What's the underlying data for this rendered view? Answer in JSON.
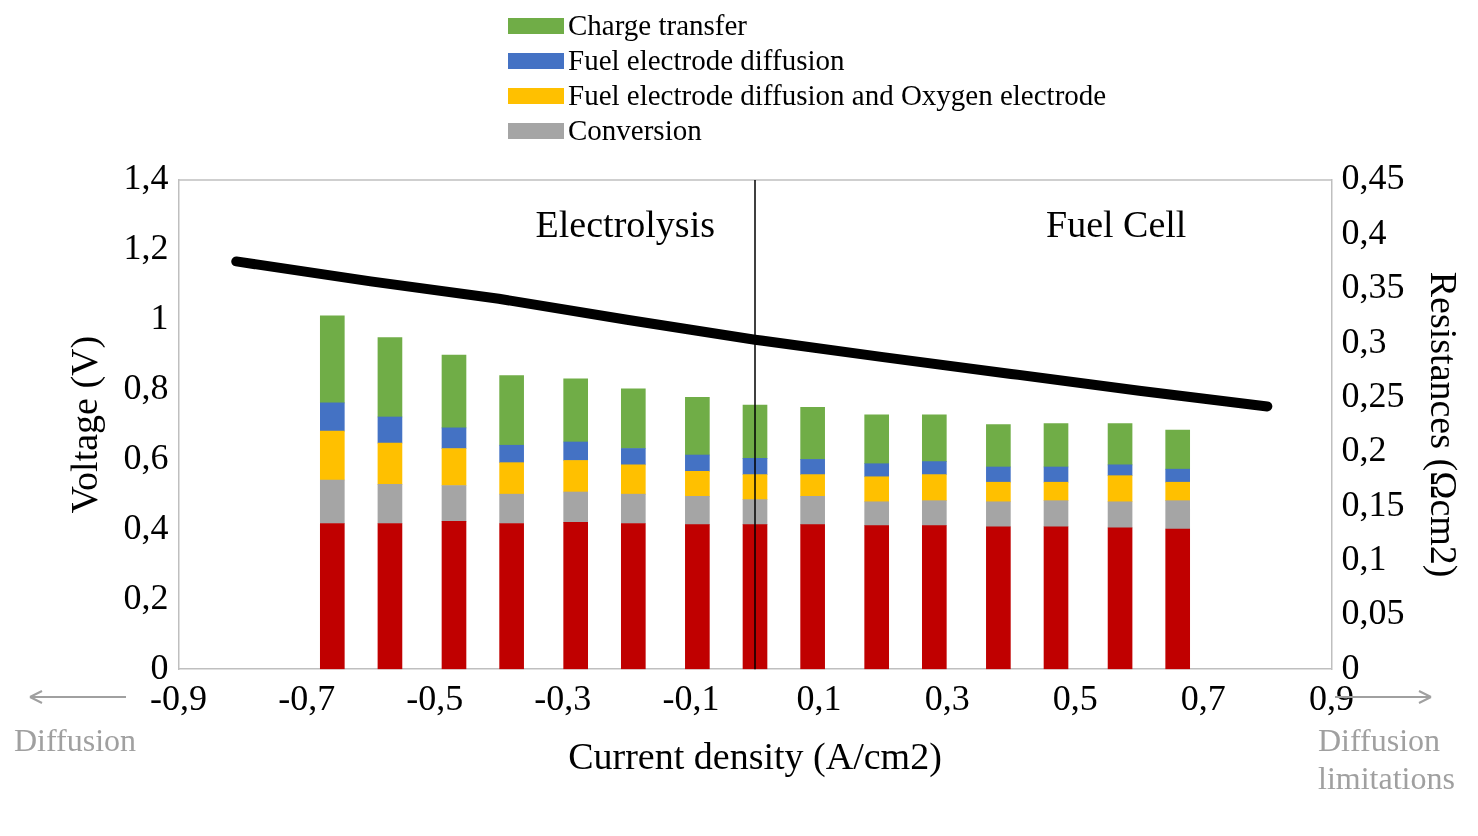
{
  "chart_data": {
    "type": "bar",
    "stacked": true,
    "xlabel": "Current density (A/cm2)",
    "ylabel": "Voltage (V)",
    "y2label": "Resistances (Ωcm2)",
    "x": [
      -0.66,
      -0.57,
      -0.47,
      -0.38,
      -0.28,
      -0.19,
      -0.09,
      0,
      0.09,
      0.19,
      0.28,
      0.38,
      0.47,
      0.57,
      0.66
    ],
    "xlim": [
      -0.9,
      0.9
    ],
    "xticks": [
      {
        "value": -0.9,
        "label": "-0,9"
      },
      {
        "value": -0.7,
        "label": "-0,7"
      },
      {
        "value": -0.5,
        "label": "-0,5"
      },
      {
        "value": -0.3,
        "label": "-0,3"
      },
      {
        "value": -0.1,
        "label": "-0,1"
      },
      {
        "value": 0.1,
        "label": "0,1"
      },
      {
        "value": 0.3,
        "label": "0,3"
      },
      {
        "value": 0.5,
        "label": "0,5"
      },
      {
        "value": 0.7,
        "label": "0,7"
      },
      {
        "value": 0.9,
        "label": "0,9"
      }
    ],
    "ylim": [
      0,
      1.4
    ],
    "yticks": [
      0,
      {
        "value": 0.2,
        "label": "0,2"
      },
      {
        "value": 0.4,
        "label": "0,4"
      },
      {
        "value": 0.6,
        "label": "0,6"
      },
      {
        "value": 0.8,
        "label": "0,8"
      },
      1,
      {
        "value": 1.2,
        "label": "1,2"
      },
      {
        "value": 1.4,
        "label": "1,4"
      }
    ],
    "y2lim": [
      0,
      0.45
    ],
    "y2ticks": [
      0,
      {
        "value": 0.05,
        "label": "0,05"
      },
      {
        "value": 0.1,
        "label": "0,1"
      },
      {
        "value": 0.15,
        "label": "0,15"
      },
      {
        "value": 0.2,
        "label": "0,2"
      },
      {
        "value": 0.25,
        "label": "0,25"
      },
      {
        "value": 0.3,
        "label": "0,3"
      },
      {
        "value": 0.35,
        "label": "0,35"
      },
      {
        "value": 0.4,
        "label": "0,4"
      },
      {
        "value": 0.45,
        "label": "0,45"
      }
    ],
    "grid": false,
    "legend": "top",
    "marker": "none",
    "line_style": "solid",
    "series": [
      {
        "type": "line",
        "color": "#000000",
        "x": [
          -0.81,
          -0.6,
          -0.4,
          -0.2,
          0,
          0.2,
          0.4,
          0.6,
          0.8
        ],
        "values": [
          1.167,
          1.11,
          1.06,
          1.0,
          0.943,
          0.893,
          0.845,
          0.797,
          0.752
        ]
      },
      {
        "axis": "y2",
        "color": "#c00000",
        "values": [
          0.134,
          0.134,
          0.136,
          0.134,
          0.135,
          0.134,
          0.133,
          0.133,
          0.133,
          0.132,
          0.132,
          0.131,
          0.131,
          0.13,
          0.129
        ]
      },
      {
        "axis": "y2",
        "name": "Conversion",
        "color": "#a5a5a5",
        "values": [
          0.04,
          0.036,
          0.033,
          0.027,
          0.028,
          0.027,
          0.026,
          0.023,
          0.026,
          0.022,
          0.023,
          0.023,
          0.024,
          0.024,
          0.026
        ]
      },
      {
        "axis": "y2",
        "name": "Fuel electrode diffusion and Oxygen electrode",
        "color": "#ffc000",
        "values": [
          0.045,
          0.038,
          0.034,
          0.029,
          0.029,
          0.027,
          0.023,
          0.023,
          0.02,
          0.023,
          0.024,
          0.018,
          0.017,
          0.024,
          0.017
        ]
      },
      {
        "axis": "y2",
        "name": "Fuel electrode diffusion",
        "color": "#4472c4",
        "values": [
          0.026,
          0.024,
          0.019,
          0.016,
          0.017,
          0.015,
          0.015,
          0.015,
          0.014,
          0.012,
          0.012,
          0.014,
          0.014,
          0.01,
          0.012
        ]
      },
      {
        "axis": "y2",
        "name": "Charge transfer",
        "color": "#70ad47",
        "values": [
          0.08,
          0.073,
          0.067,
          0.064,
          0.058,
          0.055,
          0.053,
          0.049,
          0.048,
          0.045,
          0.043,
          0.039,
          0.04,
          0.038,
          0.036
        ]
      }
    ],
    "ref_lines": [
      {
        "axis": "x",
        "value": 0,
        "color": "#000000"
      }
    ],
    "annotations": [
      "Electrolysis",
      "Fuel Cell",
      "Diffusion",
      "Diffusion limitations"
    ]
  }
}
